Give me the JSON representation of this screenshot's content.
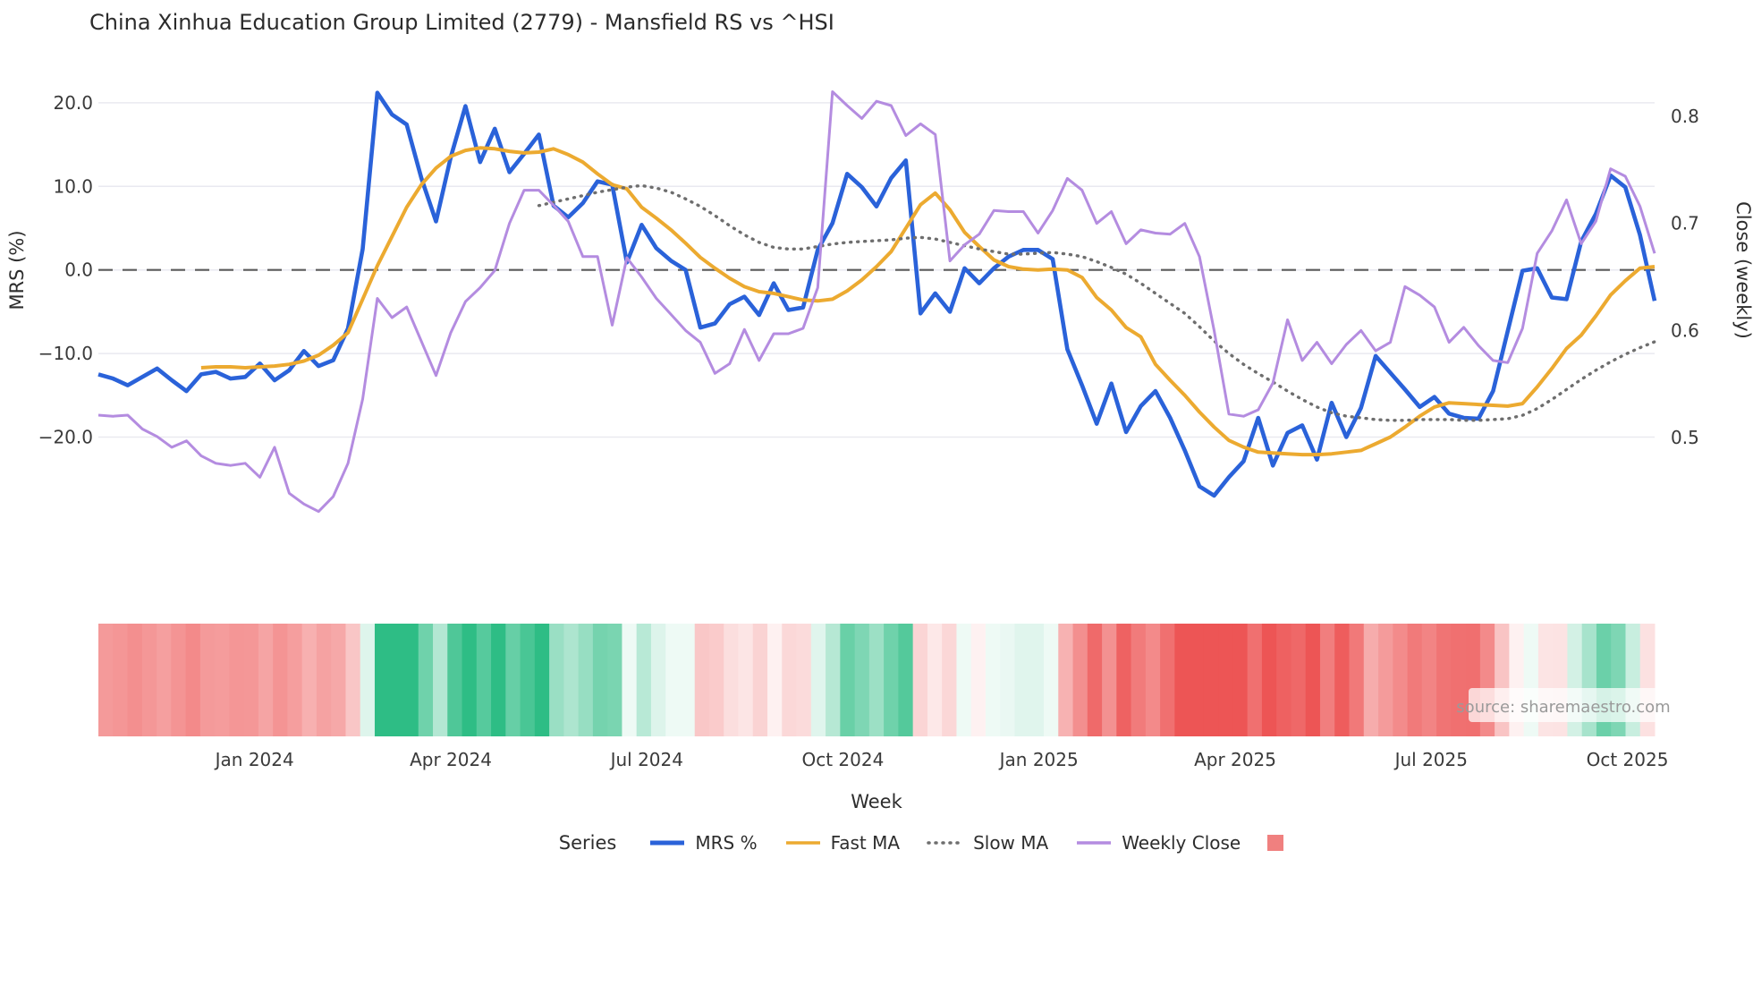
{
  "title": "China Xinhua Education Group Limited (2779) - Mansfield RS vs ^HSI",
  "source_note": "source: sharemaestro.com",
  "axes": {
    "left": {
      "label": "MRS (%)",
      "tick_labels": [
        "20.0",
        "10.0",
        "0.0",
        "−10.0",
        "−20.0"
      ],
      "tick_values": [
        20,
        10,
        0,
        -10,
        -20
      ]
    },
    "right": {
      "label": "Close (weekly)",
      "tick_labels": [
        "0.8",
        "0.7",
        "0.6",
        "0.5"
      ],
      "tick_values": [
        0.8,
        0.7,
        0.6,
        0.5
      ]
    },
    "x": {
      "label": "Week",
      "tick_labels": [
        "Jan 2024",
        "Apr 2024",
        "Jul 2024",
        "Oct 2024",
        "Jan 2025",
        "Apr 2025",
        "Jul 2025",
        "Oct 2025"
      ]
    }
  },
  "legend": {
    "title": "Series",
    "items": [
      {
        "label": "MRS %",
        "swatch": "line",
        "color": "#2a62d9",
        "dash": ""
      },
      {
        "label": "Fast MA",
        "swatch": "line",
        "color": "#ecaa30",
        "dash": ""
      },
      {
        "label": "Slow MA",
        "swatch": "dotted",
        "color": "#6e6e6e",
        "dash": "1 7"
      },
      {
        "label": "Weekly Close",
        "swatch": "line",
        "color": "#b48ce0",
        "dash": ""
      },
      {
        "label": "",
        "swatch": "patch",
        "color": "#f0807f",
        "dash": ""
      }
    ]
  },
  "colors": {
    "mrs": "#2a62d9",
    "fast_ma": "#ecaa30",
    "slow_ma": "#6e6e6e",
    "weekly_close": "#b48ce0",
    "zero_line": "#5a5a5a",
    "grid": "#e9e9f0",
    "heat_negative": "#ed5555",
    "heat_positive": "#2ebd85"
  },
  "chart_data": {
    "type": "line",
    "x_unit": "week",
    "n_weeks": 107,
    "x_tick_indices": [
      10.64,
      24.0,
      37.36,
      50.71,
      64.07,
      77.43,
      90.79,
      104.14
    ],
    "ylim_left": [
      -30,
      23
    ],
    "ylim_right": [
      0.42,
      0.85
    ],
    "grid": "horizontal-only",
    "legend_position": "bottom-center",
    "series": [
      {
        "name": "MRS %",
        "axis": "left",
        "values": [
          -12.5,
          -13,
          -13.8,
          -12.8,
          -11.8,
          -13.2,
          -14.5,
          -12.5,
          -12.2,
          -13,
          -12.8,
          -11.2,
          -13.2,
          -12,
          -9.7,
          -11.5,
          -10.8,
          -7,
          2.5,
          21.2,
          18.6,
          17.4,
          11,
          5.8,
          13.5,
          19.6,
          12.9,
          16.9,
          11.7,
          13.9,
          16.2,
          7.7,
          6.3,
          8,
          10.6,
          10.2,
          0.9,
          5.4,
          2.6,
          1.1,
          0,
          -6.9,
          -6.4,
          -4.1,
          -3.2,
          -5.4,
          -1.6,
          -4.8,
          -4.5,
          2.4,
          5.6,
          11.5,
          9.9,
          7.6,
          11,
          13.1,
          -5.2,
          -2.8,
          -5,
          0.2,
          -1.6,
          0.2,
          1.6,
          2.4,
          2.4,
          1.3,
          -9.5,
          -13.8,
          -18.4,
          -13.6,
          -19.4,
          -16.3,
          -14.5,
          -17.7,
          -21.6,
          -25.9,
          -27,
          -24.8,
          -22.9,
          -17.7,
          -23.4,
          -19.5,
          -18.6,
          -22.7,
          -15.9,
          -20,
          -16.5,
          -10.3,
          -12.3,
          -14.3,
          -16.4,
          -15.2,
          -17.2,
          -17.7,
          -17.8,
          -14.5,
          -7.3,
          -0.1,
          0.2,
          -3.3,
          -3.5,
          3.4,
          6.7,
          11.3,
          9.9,
          4.2,
          -3.7
        ]
      },
      {
        "name": "Fast MA",
        "axis": "left",
        "values": [
          null,
          null,
          null,
          null,
          null,
          null,
          null,
          -11.7,
          -11.6,
          -11.6,
          -11.7,
          -11.6,
          -11.5,
          -11.3,
          -10.9,
          -10.2,
          -9,
          -7.5,
          -3.5,
          0.5,
          4,
          7.5,
          10.2,
          12.2,
          13.6,
          14.3,
          14.6,
          14.5,
          14.2,
          14,
          14.1,
          14.5,
          13.8,
          12.9,
          11.5,
          10.2,
          9.7,
          7.5,
          6.2,
          4.8,
          3.2,
          1.5,
          0.2,
          -1,
          -2,
          -2.6,
          -2.8,
          -3.2,
          -3.6,
          -3.7,
          -3.5,
          -2.5,
          -1.2,
          0.4,
          2.2,
          5,
          7.8,
          9.2,
          7.2,
          4.5,
          2.8,
          1.2,
          0.4,
          0.1,
          0,
          0.1,
          0,
          -0.9,
          -3.3,
          -4.8,
          -6.9,
          -8,
          -11.3,
          -13.2,
          -15,
          -17,
          -18.8,
          -20.4,
          -21.2,
          -21.8,
          -21.9,
          -22,
          -22.1,
          -22.1,
          -22,
          -21.8,
          -21.6,
          -20.8,
          -20,
          -18.8,
          -17.5,
          -16.4,
          -15.9,
          -16,
          -16.1,
          -16.2,
          -16.3,
          -16,
          -14,
          -11.8,
          -9.4,
          -7.8,
          -5.5,
          -3,
          -1.3,
          0.2,
          0.4
        ]
      },
      {
        "name": "Slow MA",
        "axis": "left",
        "values": [
          null,
          null,
          null,
          null,
          null,
          null,
          null,
          null,
          null,
          null,
          null,
          null,
          null,
          null,
          null,
          null,
          null,
          null,
          null,
          null,
          null,
          null,
          null,
          null,
          null,
          null,
          null,
          null,
          null,
          null,
          7.7,
          8.1,
          8.5,
          8.9,
          9.3,
          9.6,
          9.9,
          10.1,
          9.8,
          9.3,
          8.5,
          7.6,
          6.5,
          5.3,
          4.2,
          3.3,
          2.7,
          2.5,
          2.5,
          2.8,
          3.1,
          3.3,
          3.4,
          3.5,
          3.6,
          3.8,
          3.9,
          3.7,
          3.3,
          2.9,
          2.5,
          2.2,
          1.9,
          1.9,
          2,
          2.1,
          1.9,
          1.6,
          1,
          0.3,
          -0.5,
          -1.6,
          -2.8,
          -4,
          -5.2,
          -6.8,
          -8.5,
          -10,
          -11.3,
          -12.4,
          -13.4,
          -14.5,
          -15.5,
          -16.4,
          -17.1,
          -17.5,
          -17.7,
          -17.9,
          -18,
          -18,
          -17.9,
          -17.9,
          -17.9,
          -18,
          -18,
          -17.9,
          -17.8,
          -17.4,
          -16.6,
          -15.5,
          -14.3,
          -13.1,
          -12,
          -11,
          -10.1,
          -9.3,
          -8.6
        ]
      },
      {
        "name": "Weekly Close",
        "axis": "right",
        "values": [
          0.521,
          0.52,
          0.521,
          0.508,
          0.501,
          0.491,
          0.497,
          0.483,
          0.476,
          0.474,
          0.476,
          0.463,
          0.491,
          0.448,
          0.438,
          0.431,
          0.445,
          0.476,
          0.536,
          0.63,
          0.612,
          0.622,
          0.59,
          0.558,
          0.598,
          0.627,
          0.64,
          0.656,
          0.7,
          0.731,
          0.731,
          0.717,
          0.702,
          0.669,
          0.669,
          0.605,
          0.668,
          0.65,
          0.63,
          0.615,
          0.6,
          0.589,
          0.56,
          0.569,
          0.601,
          0.572,
          0.597,
          0.597,
          0.602,
          0.64,
          0.823,
          0.81,
          0.798,
          0.814,
          0.81,
          0.782,
          0.793,
          0.783,
          0.665,
          0.68,
          0.69,
          0.712,
          0.711,
          0.711,
          0.691,
          0.712,
          0.742,
          0.731,
          0.7,
          0.711,
          0.681,
          0.694,
          0.691,
          0.69,
          0.7,
          0.669,
          0.6,
          0.522,
          0.52,
          0.526,
          0.551,
          0.61,
          0.572,
          0.589,
          0.569,
          0.587,
          0.6,
          0.581,
          0.589,
          0.641,
          0.633,
          0.622,
          0.589,
          0.603,
          0.586,
          0.572,
          0.57,
          0.602,
          0.672,
          0.693,
          0.722,
          0.681,
          0.702,
          0.751,
          0.744,
          0.716,
          0.672
        ]
      }
    ],
    "heatmap": {
      "description": "weekly cells colored from MRS % value: red negative, green positive, white near zero",
      "source_series": "MRS %"
    }
  }
}
